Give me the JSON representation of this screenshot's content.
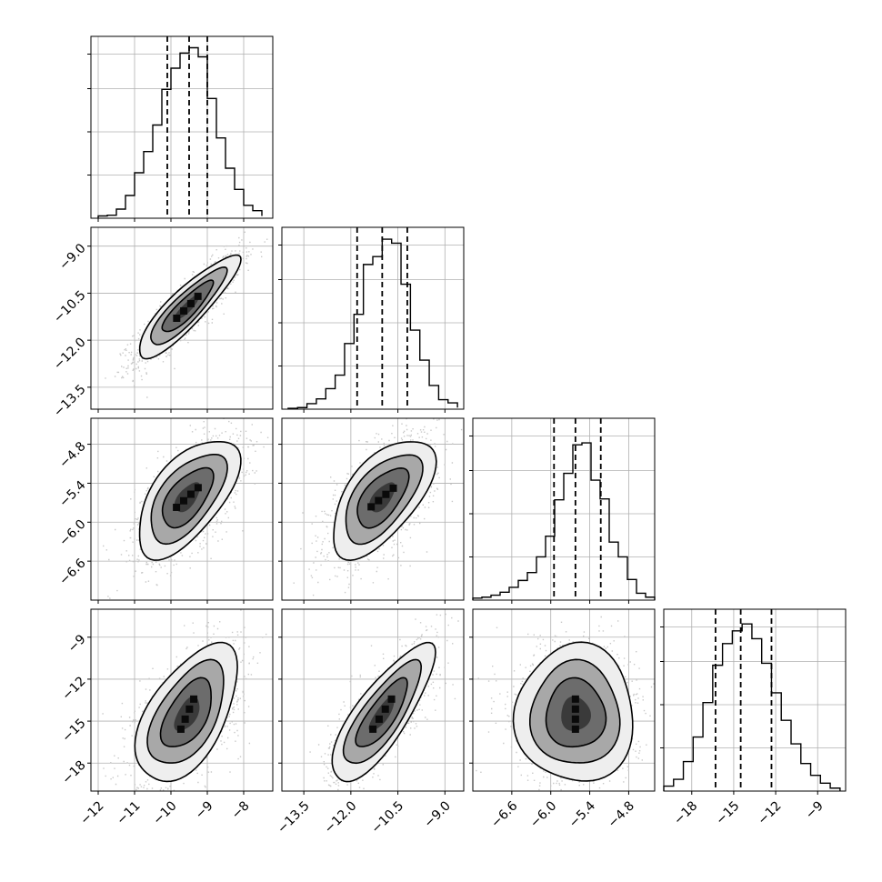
{
  "chart_data": {
    "type": "corner",
    "parameters": [
      {
        "axis_range": [
          -12.2,
          -7.2
        ],
        "ticks": [
          -12,
          -11,
          -10,
          -9,
          -8
        ],
        "tick_labels": [
          "−12",
          "−11",
          "−10",
          "−9",
          "−8"
        ],
        "quantiles": [
          -10.1,
          -9.5,
          -9.0
        ],
        "hist": {
          "bins": [
            -12.0,
            -11.75,
            -11.5,
            -11.25,
            -11.0,
            -10.75,
            -10.5,
            -10.25,
            -10.0,
            -9.75,
            -9.5,
            -9.25,
            -9.0,
            -8.75,
            -8.5,
            -8.25,
            -8.0,
            -7.75,
            -7.5
          ],
          "counts": [
            3,
            4,
            12,
            30,
            60,
            88,
            123,
            170,
            198,
            218,
            225,
            213,
            158,
            106,
            66,
            38,
            17,
            10,
            3
          ]
        },
        "hist_ylim": [
          0,
          240
        ]
      },
      {
        "axis_range": [
          -14.2,
          -8.4
        ],
        "ticks": [
          -13.5,
          -12.0,
          -10.5,
          -9.0
        ],
        "tick_labels": [
          "−13.5",
          "−12.0",
          "−10.5",
          "−9.0"
        ],
        "quantiles": [
          -11.8,
          -11.0,
          -10.2
        ],
        "hist": {
          "bins": [
            -14.0,
            -13.7,
            -13.4,
            -13.1,
            -12.8,
            -12.5,
            -12.2,
            -11.9,
            -11.6,
            -11.3,
            -11.0,
            -10.7,
            -10.4,
            -10.1,
            -9.8,
            -9.5,
            -9.2,
            -8.9,
            -8.6
          ],
          "counts": [
            1,
            2,
            7,
            13,
            26,
            43,
            83,
            120,
            183,
            193,
            215,
            210,
            158,
            100,
            62,
            30,
            12,
            8,
            2
          ]
        },
        "hist_ylim": [
          0,
          230
        ]
      },
      {
        "axis_range": [
          -7.2,
          -4.4
        ],
        "ticks": [
          -6.6,
          -6.0,
          -5.4,
          -4.8
        ],
        "tick_labels": [
          "−6.6",
          "−6.0",
          "−5.4",
          "−4.8"
        ],
        "quantiles": [
          -5.95,
          -5.62,
          -5.23
        ],
        "hist": {
          "bins": [
            -7.2,
            -7.06,
            -6.92,
            -6.78,
            -6.64,
            -6.5,
            -6.36,
            -6.22,
            -6.08,
            -5.94,
            -5.8,
            -5.66,
            -5.52,
            -5.38,
            -5.24,
            -5.1,
            -4.96,
            -4.82,
            -4.68,
            -4.54,
            -4.4
          ],
          "counts": [
            2,
            3,
            5,
            8,
            13,
            20,
            28,
            44,
            65,
            102,
            129,
            158,
            160,
            122,
            103,
            59,
            44,
            21,
            7,
            3
          ]
        },
        "hist_ylim": [
          0,
          185
        ]
      },
      {
        "axis_range": [
          -20.0,
          -7.0
        ],
        "ticks": [
          -18,
          -15,
          -12,
          -9
        ],
        "tick_labels": [
          "−18",
          "−15",
          "−12",
          "−9"
        ],
        "quantiles": [
          -16.3,
          -14.5,
          -12.3
        ],
        "hist": {
          "bins": [
            -20.0,
            -19.3,
            -18.6,
            -17.9,
            -17.2,
            -16.5,
            -15.8,
            -15.1,
            -14.4,
            -13.7,
            -13.0,
            -12.3,
            -11.6,
            -10.9,
            -10.2,
            -9.5,
            -8.8,
            -8.1,
            -7.4
          ],
          "counts": [
            5,
            12,
            30,
            55,
            90,
            128,
            150,
            163,
            170,
            155,
            130,
            100,
            72,
            48,
            28,
            16,
            8,
            3
          ]
        },
        "hist_ylim": [
          0,
          185
        ]
      }
    ],
    "pairs": [
      {
        "x": 0,
        "y": 1,
        "center": [
          -9.55,
          -10.95
        ],
        "sd": [
          0.58,
          0.68
        ],
        "corr": 0.88
      },
      {
        "x": 0,
        "y": 2,
        "center": [
          -9.55,
          -5.62
        ],
        "sd": [
          0.58,
          0.38
        ],
        "corr": 0.6
      },
      {
        "x": 1,
        "y": 2,
        "center": [
          -11.0,
          -5.62
        ],
        "sd": [
          0.68,
          0.38
        ],
        "corr": 0.6
      },
      {
        "x": 0,
        "y": 3,
        "center": [
          -9.55,
          -14.5
        ],
        "sd": [
          0.58,
          2.05
        ],
        "corr": 0.55
      },
      {
        "x": 1,
        "y": 3,
        "center": [
          -11.0,
          -14.5
        ],
        "sd": [
          0.68,
          2.05
        ],
        "corr": 0.8
      },
      {
        "x": 2,
        "y": 3,
        "center": [
          -5.62,
          -14.5
        ],
        "sd": [
          0.38,
          2.05
        ],
        "corr": 0.0
      }
    ],
    "contour_sigma_levels": [
      0.5,
      1.0,
      1.5,
      2.0
    ],
    "xlabel": "",
    "ylabel": "",
    "title": "",
    "grid": true,
    "quantile_line_style": "dashed"
  }
}
